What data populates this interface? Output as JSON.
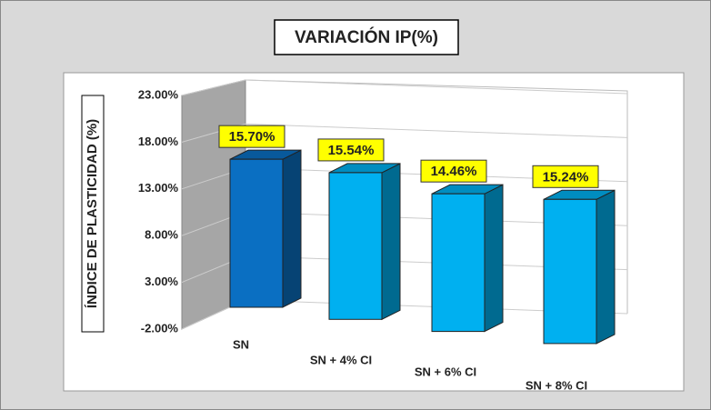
{
  "chart_data": {
    "type": "bar3d",
    "title": "VARIACIÓN IP(%)",
    "y_label": "ÍNDICE DE PLASTICIDAD (%)",
    "categories": [
      "SN",
      "SN + 4% CI",
      "SN + 6% CI",
      "SN + 8% CI"
    ],
    "values": [
      15.7,
      15.54,
      14.46,
      15.24
    ],
    "value_labels": [
      "15.70%",
      "15.54%",
      "14.46%",
      "15.24%"
    ],
    "colors": [
      "#0a6fc2",
      "#00b0f0",
      "#00b0f0",
      "#00b0f0"
    ],
    "ylim": [
      -2,
      23
    ],
    "yticks": [
      {
        "value": -2,
        "label": "-2.00%"
      },
      {
        "value": 3,
        "label": "3.00%"
      },
      {
        "value": 8,
        "label": "8.00%"
      },
      {
        "value": 13,
        "label": "13.00%"
      },
      {
        "value": 18,
        "label": "18.00%"
      },
      {
        "value": 23,
        "label": "23.00%"
      }
    ],
    "grid": true
  }
}
